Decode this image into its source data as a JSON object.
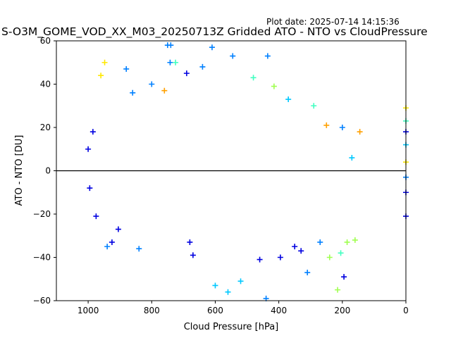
{
  "plot_date": "Plot date: 2025-07-14 14:15:36",
  "chart_data": {
    "type": "scatter",
    "title": "S-O3M_GOME_VOD_XX_M03_20250713Z Gridded ATO - NTO vs CloudPressure",
    "xlabel": "Cloud Pressure [hPa]",
    "ylabel": "ATO - NTO [DU]",
    "xlim": [
      1100,
      0
    ],
    "ylim": [
      -60,
      60
    ],
    "xticks": [
      1000,
      800,
      600,
      400,
      200,
      0
    ],
    "yticks": [
      -60,
      -40,
      -20,
      0,
      20,
      40,
      60
    ],
    "xtick_labels": [
      "1000",
      "800",
      "600",
      "400",
      "200",
      "0"
    ],
    "ytick_labels": [
      "−60",
      "−40",
      "−20",
      "0",
      "20",
      "40",
      "60"
    ],
    "reference_line_y": 0,
    "marker": "+",
    "grid": false,
    "legend": "none",
    "colormap": [
      "#0000e0",
      "#0080ff",
      "#00c8ff",
      "#40ffc0",
      "#a0ff50",
      "#ffe800",
      "#ffa000"
    ],
    "points": [
      {
        "x": 1000,
        "y": 10,
        "c": 0
      },
      {
        "x": 995,
        "y": -8,
        "c": 0
      },
      {
        "x": 985,
        "y": 18,
        "c": 0
      },
      {
        "x": 975,
        "y": -21,
        "c": 0
      },
      {
        "x": 960,
        "y": 44,
        "c": 5
      },
      {
        "x": 948,
        "y": 50,
        "c": 5
      },
      {
        "x": 940,
        "y": -35,
        "c": 1
      },
      {
        "x": 925,
        "y": -33,
        "c": 0
      },
      {
        "x": 905,
        "y": -27,
        "c": 0
      },
      {
        "x": 880,
        "y": 47,
        "c": 1
      },
      {
        "x": 860,
        "y": 36,
        "c": 1
      },
      {
        "x": 840,
        "y": -36,
        "c": 1
      },
      {
        "x": 800,
        "y": 40,
        "c": 1
      },
      {
        "x": 760,
        "y": 37,
        "c": 6
      },
      {
        "x": 750,
        "y": 58,
        "c": 1
      },
      {
        "x": 740,
        "y": 58,
        "c": 1
      },
      {
        "x": 742,
        "y": 50,
        "c": 1
      },
      {
        "x": 725,
        "y": 50,
        "c": 3
      },
      {
        "x": 690,
        "y": 45,
        "c": 0
      },
      {
        "x": 680,
        "y": -33,
        "c": 0
      },
      {
        "x": 670,
        "y": -39,
        "c": 0
      },
      {
        "x": 640,
        "y": 48,
        "c": 1
      },
      {
        "x": 610,
        "y": 57,
        "c": 1
      },
      {
        "x": 600,
        "y": -53,
        "c": 2
      },
      {
        "x": 560,
        "y": -56,
        "c": 2
      },
      {
        "x": 545,
        "y": 53,
        "c": 1
      },
      {
        "x": 520,
        "y": -51,
        "c": 2
      },
      {
        "x": 480,
        "y": 43,
        "c": 3
      },
      {
        "x": 460,
        "y": -41,
        "c": 0
      },
      {
        "x": 440,
        "y": -59,
        "c": 1
      },
      {
        "x": 435,
        "y": 53,
        "c": 1
      },
      {
        "x": 415,
        "y": 39,
        "c": 4
      },
      {
        "x": 395,
        "y": -40,
        "c": 0
      },
      {
        "x": 370,
        "y": 33,
        "c": 2
      },
      {
        "x": 350,
        "y": -35,
        "c": 0
      },
      {
        "x": 330,
        "y": -37,
        "c": 0
      },
      {
        "x": 310,
        "y": -47,
        "c": 1
      },
      {
        "x": 290,
        "y": 30,
        "c": 3
      },
      {
        "x": 270,
        "y": -33,
        "c": 1
      },
      {
        "x": 250,
        "y": 21,
        "c": 6
      },
      {
        "x": 240,
        "y": -40,
        "c": 4
      },
      {
        "x": 215,
        "y": -55,
        "c": 4
      },
      {
        "x": 205,
        "y": -38,
        "c": 3
      },
      {
        "x": 200,
        "y": 20,
        "c": 1
      },
      {
        "x": 195,
        "y": -49,
        "c": 0
      },
      {
        "x": 185,
        "y": -33,
        "c": 4
      },
      {
        "x": 170,
        "y": 6,
        "c": 2
      },
      {
        "x": 160,
        "y": -32,
        "c": 4
      },
      {
        "x": 145,
        "y": 18,
        "c": 6
      },
      {
        "x": 0,
        "y": 29,
        "c": 5
      },
      {
        "x": 0,
        "y": 23,
        "c": 3
      },
      {
        "x": 0,
        "y": 18,
        "c": 0
      },
      {
        "x": 0,
        "y": 12,
        "c": 2
      },
      {
        "x": 0,
        "y": 4,
        "c": 5
      },
      {
        "x": 0,
        "y": -3,
        "c": 1
      },
      {
        "x": 0,
        "y": -10,
        "c": 0
      },
      {
        "x": 0,
        "y": -21,
        "c": 0
      }
    ]
  }
}
